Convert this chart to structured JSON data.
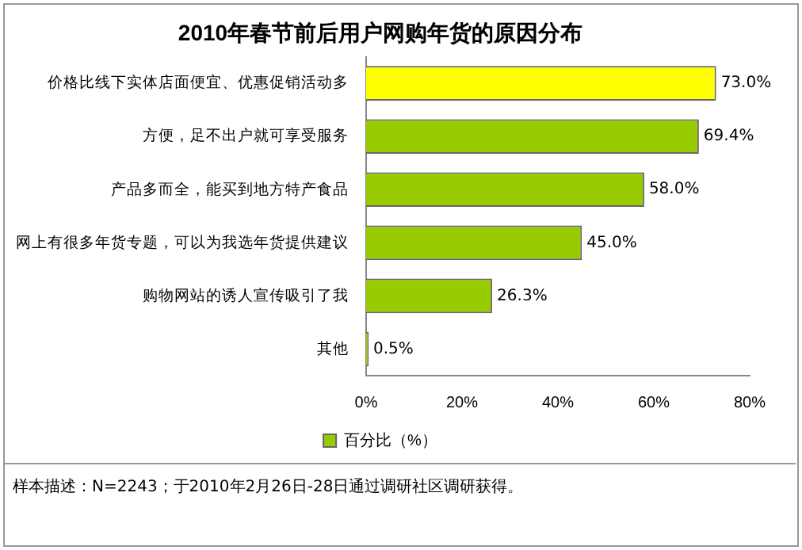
{
  "chart_data": {
    "type": "bar",
    "orientation": "horizontal",
    "title": "2010年春节前后用户网购年货的原因分布",
    "categories": [
      "价格比线下实体店面便宜、优惠促销活动多",
      "方便，足不出户就可享受服务",
      "产品多而全，能买到地方特产食品",
      "网上有很多年货专题，可以为我选年货提供建议",
      "购物网站的诱人宣传吸引了我",
      "其他"
    ],
    "series": [
      {
        "name": "百分比（%）",
        "color": "#99cc00",
        "colors": [
          "#ffff00",
          "#99cc00",
          "#99cc00",
          "#99cc00",
          "#99cc00",
          "#99cc00"
        ],
        "values": [
          73.0,
          69.4,
          58.0,
          45.0,
          26.3,
          0.5
        ],
        "value_labels": [
          "73.0%",
          "69.4%",
          "58.0%",
          "45.0%",
          "26.3%",
          "0.5%"
        ]
      }
    ],
    "xlim": [
      0,
      80
    ],
    "xticks": [
      {
        "value": 0,
        "label": "0%"
      },
      {
        "value": 20,
        "label": "20%"
      },
      {
        "value": 40,
        "label": "40%"
      },
      {
        "value": 60,
        "label": "60%"
      },
      {
        "value": 80,
        "label": "80%"
      }
    ],
    "grid": false,
    "legend": "bottom",
    "annotations": [
      "样本描述：N=2243；于2010年2月26日-28日通过调研社区调研获得。"
    ]
  }
}
